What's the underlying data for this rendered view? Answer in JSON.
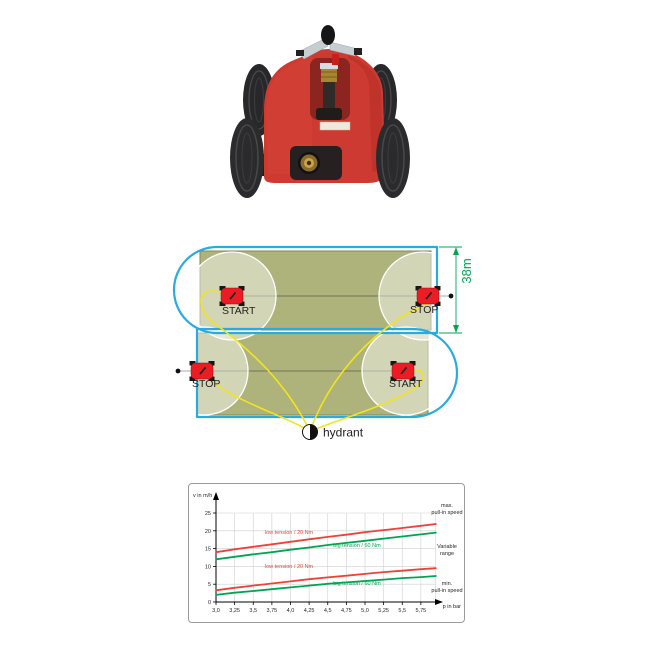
{
  "page": {
    "background": "#ffffff"
  },
  "product_photo": {
    "alt": "Red four-wheel travelling irrigation machine with impact sprinkler on top and brass hose coupling at the front",
    "body_color": "#cd3a31",
    "wheel_color": "#2b2b2d",
    "brass_color": "#c8a34b"
  },
  "field_diagram": {
    "dimension_label": "38m",
    "hydrant_label": "hydrant",
    "strips": [
      {
        "left_label": "START",
        "right_label": "STOP"
      },
      {
        "left_label": "STOP",
        "right_label": "START"
      }
    ],
    "colors": {
      "field": "#adb37b",
      "field_border": "#82875a",
      "outline": "#29abe2",
      "hose": "#f2e51e",
      "machine": "#ec1c24",
      "dimension": "#00a551",
      "track": "#6f7455"
    }
  },
  "chart_data": {
    "type": "line",
    "title": "",
    "xlabel": "p in bar",
    "ylabel": "v in m/h",
    "xlim": [
      3.0,
      6.0
    ],
    "ylim": [
      0,
      28
    ],
    "grid": true,
    "legend_position": "inline-labels",
    "x_tick_labels": [
      "3,0",
      "3,25",
      "3,5",
      "3,75",
      "4,0",
      "4,25",
      "4,5",
      "4,75",
      "5,0",
      "5,25",
      "5,5",
      "5,75"
    ],
    "x_tick_values": [
      3.0,
      3.25,
      3.5,
      3.75,
      4.0,
      4.25,
      4.5,
      4.75,
      5.0,
      5.25,
      5.5,
      5.75
    ],
    "y_ticks": [
      0,
      5,
      10,
      15,
      20,
      25
    ],
    "x": [
      3.0,
      3.25,
      3.5,
      3.75,
      4.0,
      4.25,
      4.5,
      4.75,
      5.0,
      5.25,
      5.5,
      5.75,
      5.95
    ],
    "series": [
      {
        "name": "max-low-tension",
        "label": "low tension / 20 Nm",
        "color": "#ed4238",
        "group": "max. pull-in speed",
        "values": [
          14.0,
          14.8,
          15.5,
          16.2,
          16.9,
          17.6,
          18.3,
          18.9,
          19.6,
          20.2,
          20.8,
          21.4,
          21.9
        ]
      },
      {
        "name": "max-big-tension",
        "label": "big tension / 60 Nm",
        "color": "#00a551",
        "group": "max. pull-in speed",
        "values": [
          12.0,
          12.7,
          13.4,
          14.0,
          14.7,
          15.3,
          16.0,
          16.6,
          17.2,
          17.8,
          18.4,
          19.0,
          19.5
        ]
      },
      {
        "name": "min-low-tension",
        "label": "low tension / 20 Nm",
        "color": "#ed4238",
        "group": "min. pull-in speed",
        "values": [
          3.3,
          4.0,
          4.6,
          5.2,
          5.8,
          6.4,
          6.9,
          7.4,
          7.9,
          8.4,
          8.8,
          9.2,
          9.5
        ]
      },
      {
        "name": "min-big-tension",
        "label": "big tension / 60 Nm",
        "color": "#00a551",
        "group": "min. pull-in speed",
        "values": [
          2.0,
          2.6,
          3.1,
          3.6,
          4.1,
          4.6,
          5.1,
          5.5,
          5.9,
          6.3,
          6.7,
          7.0,
          7.3
        ]
      }
    ],
    "annotations": [
      {
        "lines": [
          "max.",
          "pull-in speed"
        ]
      },
      {
        "lines": [
          "Variable",
          "range"
        ]
      },
      {
        "lines": [
          "min.",
          "pull-in speed"
        ]
      }
    ]
  }
}
